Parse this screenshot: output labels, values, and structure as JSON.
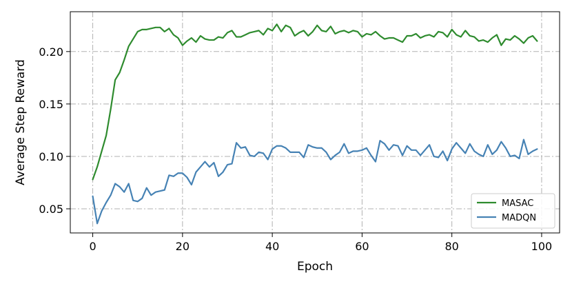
{
  "chart_data": {
    "type": "line",
    "xlabel": "Epoch",
    "ylabel": "Average Step Reward",
    "xlim": [
      -5,
      104
    ],
    "ylim": [
      0.027,
      0.238
    ],
    "xticks": [
      0,
      20,
      40,
      60,
      80,
      100
    ],
    "yticks": [
      0.05,
      0.1,
      0.15,
      0.2
    ],
    "ytick_labels": [
      "0.05",
      "0.10",
      "0.15",
      "0.20"
    ],
    "grid": true,
    "legend_position": "lower-right",
    "series": [
      {
        "name": "MASAC",
        "color": "#2e8b2e",
        "x": [
          0,
          1,
          2,
          3,
          4,
          5,
          6,
          7,
          8,
          9,
          10,
          11,
          12,
          13,
          14,
          15,
          16,
          17,
          18,
          19,
          20,
          21,
          22,
          23,
          24,
          25,
          26,
          27,
          28,
          29,
          30,
          31,
          32,
          33,
          34,
          35,
          36,
          37,
          38,
          39,
          40,
          41,
          42,
          43,
          44,
          45,
          46,
          47,
          48,
          49,
          50,
          51,
          52,
          53,
          54,
          55,
          56,
          57,
          58,
          59,
          60,
          61,
          62,
          63,
          64,
          65,
          66,
          67,
          68,
          69,
          70,
          71,
          72,
          73,
          74,
          75,
          76,
          77,
          78,
          79,
          80,
          81,
          82,
          83,
          84,
          85,
          86,
          87,
          88,
          89,
          90,
          91,
          92,
          93,
          94,
          95,
          96,
          97,
          98,
          99
        ],
        "values": [
          0.078,
          0.09,
          0.105,
          0.12,
          0.145,
          0.173,
          0.18,
          0.192,
          0.205,
          0.212,
          0.219,
          0.221,
          0.221,
          0.222,
          0.223,
          0.223,
          0.219,
          0.222,
          0.216,
          0.213,
          0.206,
          0.21,
          0.213,
          0.209,
          0.215,
          0.212,
          0.211,
          0.211,
          0.214,
          0.213,
          0.218,
          0.22,
          0.214,
          0.214,
          0.216,
          0.218,
          0.219,
          0.22,
          0.216,
          0.222,
          0.22,
          0.226,
          0.219,
          0.225,
          0.223,
          0.215,
          0.218,
          0.22,
          0.215,
          0.219,
          0.225,
          0.22,
          0.219,
          0.224,
          0.217,
          0.219,
          0.22,
          0.218,
          0.22,
          0.219,
          0.214,
          0.217,
          0.216,
          0.219,
          0.215,
          0.212,
          0.213,
          0.213,
          0.211,
          0.209,
          0.215,
          0.215,
          0.217,
          0.213,
          0.215,
          0.216,
          0.214,
          0.219,
          0.218,
          0.214,
          0.221,
          0.216,
          0.214,
          0.22,
          0.215,
          0.214,
          0.21,
          0.211,
          0.209,
          0.213,
          0.216,
          0.206,
          0.212,
          0.211,
          0.215,
          0.212,
          0.208,
          0.213,
          0.215,
          0.21
        ]
      },
      {
        "name": "MADQN",
        "color": "#4682b4",
        "x": [
          0,
          1,
          2,
          3,
          4,
          5,
          6,
          7,
          8,
          9,
          10,
          11,
          12,
          13,
          14,
          15,
          16,
          17,
          18,
          19,
          20,
          21,
          22,
          23,
          24,
          25,
          26,
          27,
          28,
          29,
          30,
          31,
          32,
          33,
          34,
          35,
          36,
          37,
          38,
          39,
          40,
          41,
          42,
          43,
          44,
          45,
          46,
          47,
          48,
          49,
          50,
          51,
          52,
          53,
          54,
          55,
          56,
          57,
          58,
          59,
          60,
          61,
          62,
          63,
          64,
          65,
          66,
          67,
          68,
          69,
          70,
          71,
          72,
          73,
          74,
          75,
          76,
          77,
          78,
          79,
          80,
          81,
          82,
          83,
          84,
          85,
          86,
          87,
          88,
          89,
          90,
          91,
          92,
          93,
          94,
          95,
          96,
          97,
          98,
          99
        ],
        "values": [
          0.062,
          0.036,
          0.048,
          0.056,
          0.063,
          0.074,
          0.071,
          0.066,
          0.074,
          0.058,
          0.057,
          0.06,
          0.07,
          0.063,
          0.066,
          0.067,
          0.068,
          0.082,
          0.081,
          0.084,
          0.084,
          0.08,
          0.073,
          0.085,
          0.09,
          0.095,
          0.09,
          0.094,
          0.081,
          0.085,
          0.092,
          0.093,
          0.113,
          0.108,
          0.109,
          0.101,
          0.1,
          0.104,
          0.103,
          0.097,
          0.107,
          0.11,
          0.11,
          0.108,
          0.104,
          0.104,
          0.104,
          0.099,
          0.111,
          0.109,
          0.108,
          0.108,
          0.104,
          0.097,
          0.101,
          0.104,
          0.112,
          0.103,
          0.105,
          0.105,
          0.106,
          0.108,
          0.101,
          0.095,
          0.115,
          0.112,
          0.106,
          0.111,
          0.11,
          0.101,
          0.11,
          0.106,
          0.106,
          0.101,
          0.106,
          0.111,
          0.1,
          0.099,
          0.105,
          0.096,
          0.107,
          0.113,
          0.108,
          0.103,
          0.112,
          0.105,
          0.102,
          0.1,
          0.111,
          0.102,
          0.106,
          0.114,
          0.108,
          0.1,
          0.101,
          0.098,
          0.116,
          0.102,
          0.105,
          0.107
        ]
      }
    ]
  }
}
